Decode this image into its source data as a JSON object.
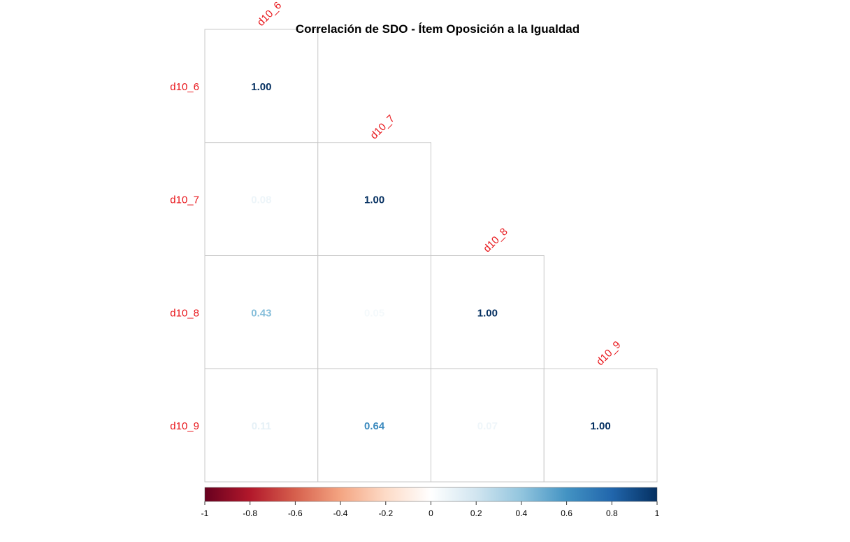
{
  "chart_data": {
    "type": "heatmap",
    "subtype": "correlation-matrix-lower-triangle",
    "title": "Correlación de SDO - Ítem Oposición a la Igualdad",
    "variables": [
      "d10_6",
      "d10_7",
      "d10_8",
      "d10_9"
    ],
    "matrix": [
      [
        1.0,
        null,
        null,
        null
      ],
      [
        0.08,
        1.0,
        null,
        null
      ],
      [
        0.43,
        0.05,
        1.0,
        null
      ],
      [
        0.11,
        0.64,
        0.07,
        1.0
      ]
    ],
    "value_labels": [
      [
        "1.00",
        "",
        "",
        ""
      ],
      [
        "0.08",
        "1.00",
        "",
        ""
      ],
      [
        "0.43",
        "0.05",
        "1.00",
        ""
      ],
      [
        "0.11",
        "0.64",
        "0.07",
        "1.00"
      ]
    ],
    "label_color": "#e8161b",
    "colorbar": {
      "range": [
        -1,
        1
      ],
      "ticks": [
        -1,
        -0.8,
        -0.6,
        -0.4,
        -0.2,
        0,
        0.2,
        0.4,
        0.6,
        0.8,
        1
      ],
      "tick_labels": [
        "-1",
        "-0.8",
        "-0.6",
        "-0.4",
        "-0.2",
        "0",
        "0.2",
        "0.4",
        "0.6",
        "0.8",
        "1"
      ],
      "colors": [
        "#67001f",
        "#b2182b",
        "#d6604d",
        "#f4a582",
        "#fddbc7",
        "#ffffff",
        "#d1e5f0",
        "#92c5de",
        "#4393c3",
        "#2166ac",
        "#053061"
      ],
      "placement": "bottom"
    }
  }
}
